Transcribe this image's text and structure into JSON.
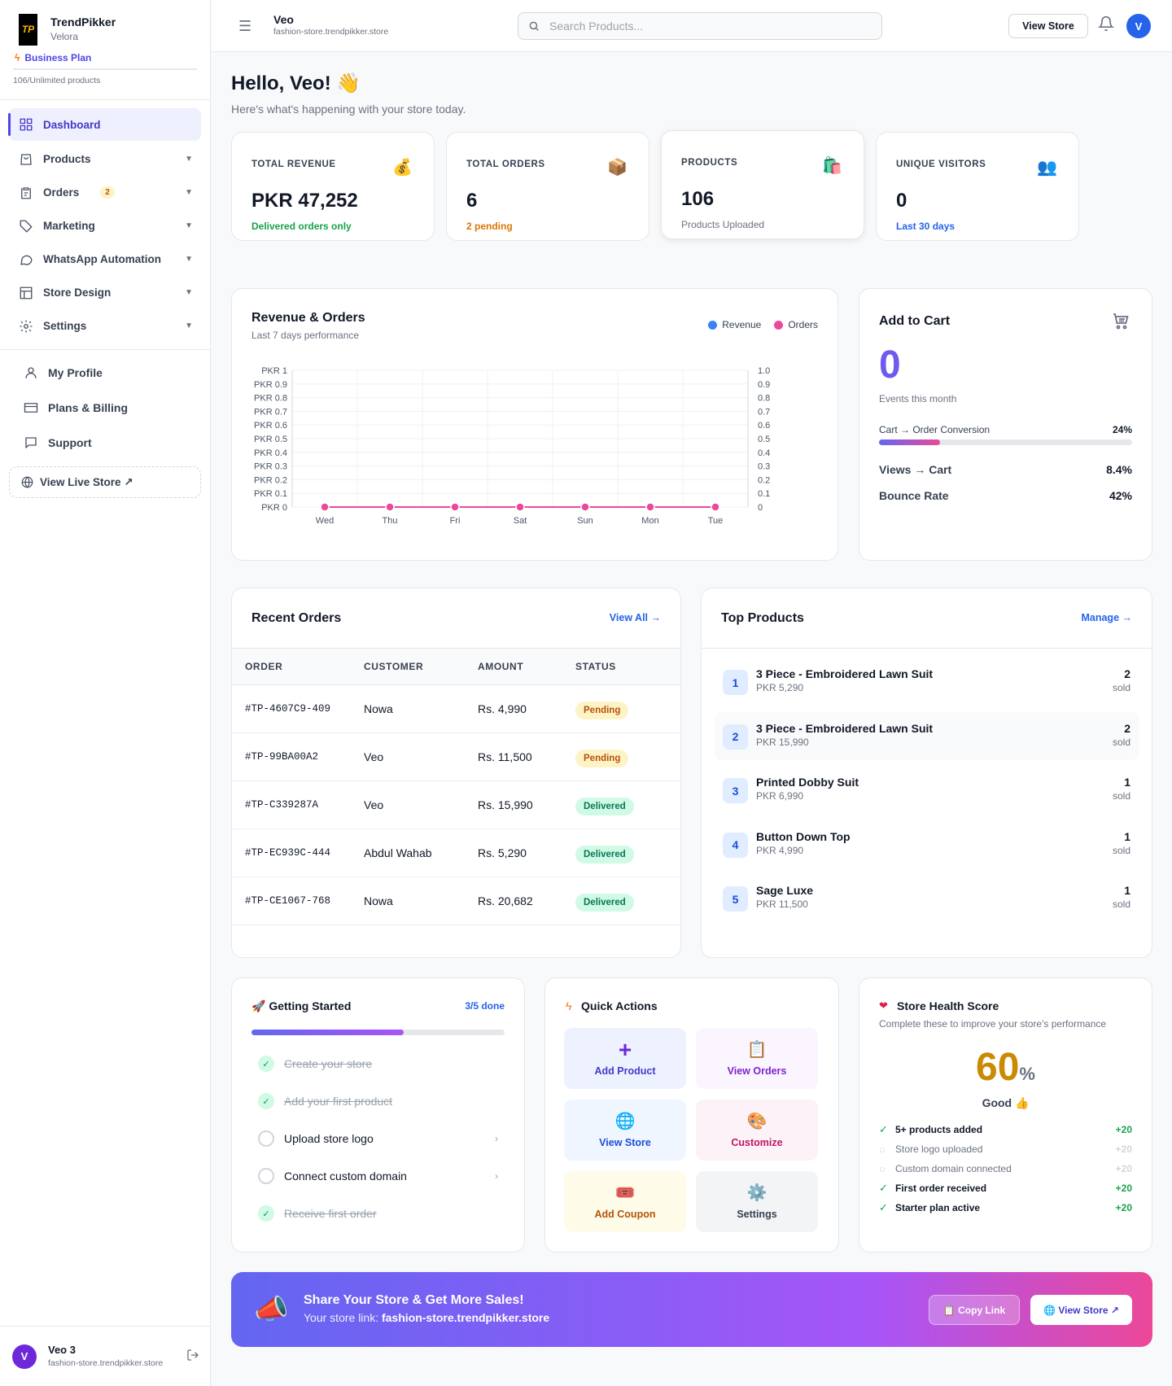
{
  "brand": {
    "name": "TrendPikker",
    "store": "Velora",
    "logo_text": "TP",
    "plan": "Business Plan",
    "products_count": "106/Unlimited products"
  },
  "nav": [
    {
      "label": "Dashboard",
      "icon": "grid-icon",
      "active": true
    },
    {
      "label": "Products",
      "icon": "shopping-bag-icon"
    },
    {
      "label": "Orders",
      "icon": "clipboard-icon",
      "badge": "2"
    },
    {
      "label": "Marketing",
      "icon": "tag-icon"
    },
    {
      "label": "WhatsApp Automation",
      "icon": "chat-icon"
    },
    {
      "label": "Store Design",
      "icon": "layout-icon"
    },
    {
      "label": "Settings",
      "icon": "gear-icon"
    }
  ],
  "nav2": [
    {
      "label": "My Profile",
      "icon": "user-icon"
    },
    {
      "label": "Plans & Billing",
      "icon": "card-icon"
    },
    {
      "label": "Support",
      "icon": "message-icon"
    }
  ],
  "live_store": "View Live Store ↗",
  "user": {
    "initial": "V",
    "name": "Veo 3",
    "domain": "fashion-store.trendpikker.store"
  },
  "topbar": {
    "store_name": "Veo",
    "store_domain": "fashion-store.trendpikker.store",
    "search_placeholder": "Search Products...",
    "view_store": "View Store",
    "avatar": "V"
  },
  "greeting": {
    "title": "Hello, Veo! 👋",
    "subtitle": "Here's what's happening with your store today."
  },
  "stats": [
    {
      "label": "TOTAL REVENUE",
      "value": "PKR 47,252",
      "sub": "Delivered orders only",
      "icon": "💰",
      "sub_color": "#16a34a"
    },
    {
      "label": "TOTAL ORDERS",
      "value": "6",
      "sub": "2 pending",
      "icon": "📦",
      "sub_color": "#d97706"
    },
    {
      "label": "PRODUCTS",
      "value": "106",
      "sub": "Products Uploaded",
      "icon": "🛍️",
      "sub_color": "#6b7280"
    },
    {
      "label": "UNIQUE VISITORS",
      "value": "0",
      "sub": "Last 30 days",
      "icon": "👥",
      "sub_color": "#2563eb"
    }
  ],
  "revenue_chart": {
    "title": "Revenue & Orders",
    "subtitle": "Last 7 days performance",
    "legend": [
      "Revenue",
      "Orders"
    ]
  },
  "chart_data": {
    "type": "line",
    "categories": [
      "Wed",
      "Thu",
      "Fri",
      "Sat",
      "Sun",
      "Mon",
      "Tue"
    ],
    "series": [
      {
        "name": "Revenue",
        "values": [
          0,
          0,
          0,
          0,
          0,
          0,
          0
        ],
        "color": "#3b82f6"
      },
      {
        "name": "Orders",
        "values": [
          0,
          0,
          0,
          0,
          0,
          0,
          0
        ],
        "color": "#ec4899"
      }
    ],
    "y_left_ticks": [
      "PKR 1",
      "PKR 0.9",
      "PKR 0.8",
      "PKR 0.7",
      "PKR 0.6",
      "PKR 0.5",
      "PKR 0.4",
      "PKR 0.3",
      "PKR 0.2",
      "PKR 0.1",
      "PKR 0"
    ],
    "y_right_ticks": [
      "1.0",
      "0.9",
      "0.8",
      "0.7",
      "0.6",
      "0.5",
      "0.4",
      "0.3",
      "0.2",
      "0.1",
      "0"
    ],
    "ylim": [
      0,
      1
    ],
    "grid": true,
    "legend_position": "top-right"
  },
  "cart": {
    "title": "Add to Cart",
    "value": "0",
    "sub": "Events this month",
    "conv_label": "Cart → Order Conversion",
    "conv_value": "24%",
    "conv_fraction": 0.24,
    "views_label": "Views → Cart",
    "views_value": "8.4%",
    "bounce_label": "Bounce Rate",
    "bounce_value": "42%"
  },
  "orders": {
    "title": "Recent Orders",
    "view_all": "View All →",
    "headers": [
      "ORDER",
      "CUSTOMER",
      "AMOUNT",
      "STATUS"
    ],
    "rows": [
      {
        "id": "#TP-4607C9-409",
        "customer": "Nowa",
        "amount": "Rs. 4,990",
        "status": "Pending"
      },
      {
        "id": "#TP-99BA00A2",
        "customer": "Veo",
        "amount": "Rs. 11,500",
        "status": "Pending"
      },
      {
        "id": "#TP-C339287A",
        "customer": "Veo",
        "amount": "Rs. 15,990",
        "status": "Delivered"
      },
      {
        "id": "#TP-EC939C-444",
        "customer": "Abdul Wahab",
        "amount": "Rs. 5,290",
        "status": "Delivered"
      },
      {
        "id": "#TP-CE1067-768",
        "customer": "Nowa",
        "amount": "Rs. 20,682",
        "status": "Delivered"
      }
    ]
  },
  "top_products": {
    "title": "Top Products",
    "manage": "Manage →",
    "items": [
      {
        "rank": "1",
        "name": "3 Piece - Embroidered Lawn Suit",
        "price": "PKR 5,290",
        "count": "2",
        "unit": "sold"
      },
      {
        "rank": "2",
        "name": "3 Piece - Embroidered Lawn Suit",
        "price": "PKR 15,990",
        "count": "2",
        "unit": "sold"
      },
      {
        "rank": "3",
        "name": "Printed Dobby Suit",
        "price": "PKR 6,990",
        "count": "1",
        "unit": "sold"
      },
      {
        "rank": "4",
        "name": "Button Down Top",
        "price": "PKR 4,990",
        "count": "1",
        "unit": "sold"
      },
      {
        "rank": "5",
        "name": "Sage Luxe",
        "price": "PKR 11,500",
        "count": "1",
        "unit": "sold"
      }
    ]
  },
  "getting_started": {
    "title": "🚀 Getting Started",
    "progress_label": "3/5 done",
    "progress_fraction": 0.6,
    "items": [
      {
        "label": "Create your store",
        "done": true
      },
      {
        "label": "Add your first product",
        "done": true
      },
      {
        "label": "Upload store logo",
        "done": false
      },
      {
        "label": "Connect custom domain",
        "done": false
      },
      {
        "label": "Receive first order",
        "done": true
      }
    ]
  },
  "quick_actions": {
    "title": "Quick Actions",
    "items": [
      {
        "label": "Add Product",
        "icon": "+",
        "bg": "#eef2ff",
        "color": "#4338ca"
      },
      {
        "label": "View Orders",
        "icon": "📋",
        "bg": "#faf5ff",
        "color": "#7e22ce"
      },
      {
        "label": "View Store",
        "icon": "🌐",
        "bg": "#eff6ff",
        "color": "#1d4ed8"
      },
      {
        "label": "Customize",
        "icon": "🎨",
        "bg": "#fdf2f8",
        "color": "#be185d"
      },
      {
        "label": "Add Coupon",
        "icon": "🎟️",
        "bg": "#fefce8",
        "color": "#b45309"
      },
      {
        "label": "Settings",
        "icon": "⚙️",
        "bg": "#f3f4f6",
        "color": "#374151"
      }
    ]
  },
  "health": {
    "title": "Store Health Score",
    "subtitle": "Complete these to improve your store's performance",
    "score": "60",
    "unit": "%",
    "rating": "Good 👍",
    "items": [
      {
        "label": "5+ products added",
        "points": "+20",
        "done": true
      },
      {
        "label": "Store logo uploaded",
        "points": "+20",
        "done": false
      },
      {
        "label": "Custom domain connected",
        "points": "+20",
        "done": false
      },
      {
        "label": "First order received",
        "points": "+20",
        "done": true
      },
      {
        "label": "Starter plan active",
        "points": "+20",
        "done": true
      }
    ]
  },
  "banner": {
    "title": "Share Your Store & Get More Sales!",
    "link_prefix": "Your store link: ",
    "link": "fashion-store.trendpikker.store",
    "copy": "📋 Copy Link",
    "view": "🌐 View Store ↗"
  }
}
